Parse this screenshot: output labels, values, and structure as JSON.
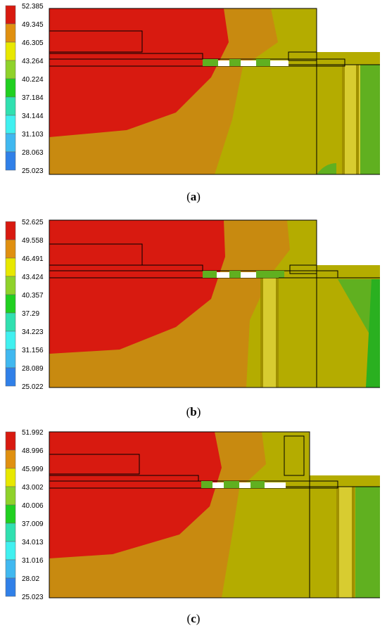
{
  "panels": [
    {
      "label": "a",
      "legend_ticks": [
        "52.385",
        "49.345",
        "46.305",
        "43.264",
        "40.224",
        "37.184",
        "34.144",
        "31.103",
        "28.063",
        "25.023"
      ]
    },
    {
      "label": "b",
      "legend_ticks": [
        "52.625",
        "49.558",
        "46.491",
        "43.424",
        "40.357",
        "37.29",
        "34.223",
        "31.156",
        "28.089",
        "25.022"
      ]
    },
    {
      "label": "c",
      "legend_ticks": [
        "51.992",
        "48.996",
        "45.999",
        "43.002",
        "40.006",
        "37.009",
        "34.013",
        "31.016",
        "28.02",
        "25.023"
      ]
    }
  ],
  "colors": {
    "band": [
      "#d81a10",
      "#e09010",
      "#e8e800",
      "#8fd22a",
      "#20d020",
      "#30e0b0",
      "#40f0f0",
      "#40b8f0",
      "#3080e8",
      "#1010e0"
    ],
    "red": "#d81a10",
    "orange": "#c27a10",
    "olive": "#b0a800",
    "olive2": "#9a9a00",
    "green": "#60b020",
    "pipe": "#d8cc30"
  }
}
